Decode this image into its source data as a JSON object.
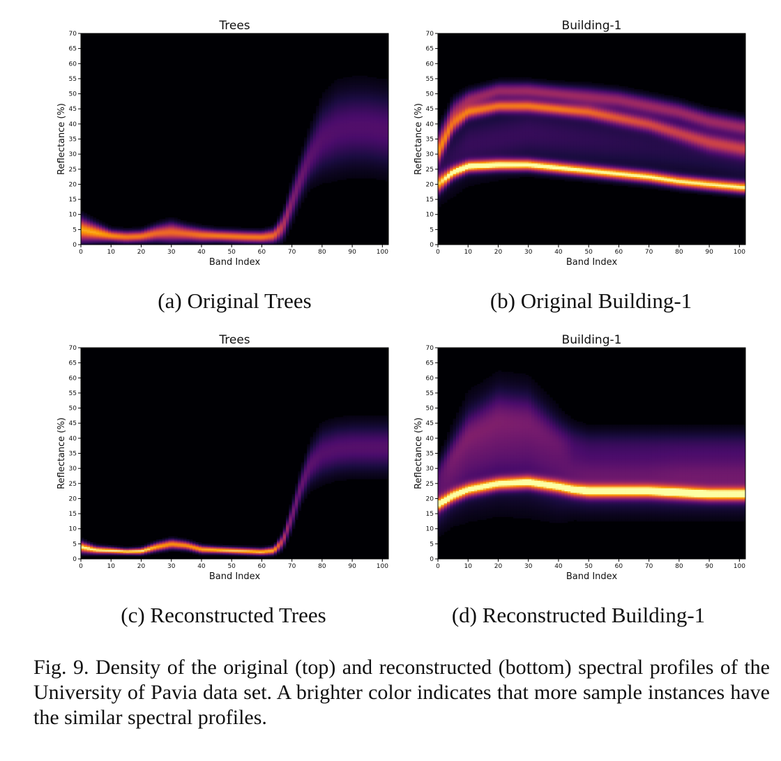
{
  "chart_data": [
    {
      "type": "heatmap",
      "title": "Trees",
      "xlabel": "Band Index",
      "ylabel": "Reflectance (%)",
      "xlim": [
        0,
        102
      ],
      "ylim": [
        0,
        70
      ],
      "xticks": [
        0,
        10,
        20,
        30,
        40,
        50,
        60,
        70,
        80,
        90,
        100
      ],
      "yticks": [
        0,
        5,
        10,
        15,
        20,
        25,
        30,
        35,
        40,
        45,
        50,
        55,
        60,
        65,
        70
      ],
      "colormap": "inferno",
      "caption": "(a) Original Trees",
      "bands": [
        {
          "name": "",
          "x": [
            0,
            5,
            10,
            15,
            20,
            25,
            30,
            35,
            40,
            45,
            50,
            55,
            60,
            64,
            67,
            70,
            73,
            76,
            80,
            85,
            90,
            95,
            101
          ],
          "center": [
            5,
            4,
            3,
            2.6,
            2.8,
            3.8,
            4.2,
            3.7,
            3.2,
            3,
            2.8,
            2.6,
            2.5,
            3,
            6,
            14,
            22,
            29,
            35,
            38,
            39,
            39,
            38
          ],
          "spread": [
            2.5,
            1.8,
            1.2,
            1.2,
            1.2,
            1.6,
            2,
            1.6,
            1.4,
            1.2,
            1.2,
            1.2,
            1.2,
            1.4,
            2.5,
            3.5,
            4,
            5,
            7,
            8,
            8,
            8,
            8
          ],
          "peak": [
            0.9,
            0.9,
            0.85,
            0.8,
            0.8,
            0.75,
            0.75,
            0.75,
            0.78,
            0.8,
            0.8,
            0.8,
            0.8,
            0.75,
            0.55,
            0.4,
            0.35,
            0.3,
            0.28,
            0.27,
            0.27,
            0.27,
            0.27
          ]
        }
      ]
    },
    {
      "type": "heatmap",
      "title": "Building-1",
      "xlabel": "Band Index",
      "ylabel": "Reflectance (%)",
      "xlim": [
        0,
        102
      ],
      "ylim": [
        0,
        70
      ],
      "xticks": [
        0,
        10,
        20,
        30,
        40,
        50,
        60,
        70,
        80,
        90,
        100
      ],
      "yticks": [
        0,
        5,
        10,
        15,
        20,
        25,
        30,
        35,
        40,
        45,
        50,
        55,
        60,
        65,
        70
      ],
      "colormap": "inferno",
      "caption": "(b) Original Building-1",
      "bands": [
        {
          "name": "",
          "x": [
            0,
            5,
            10,
            20,
            30,
            40,
            50,
            60,
            70,
            80,
            90,
            101
          ],
          "center": [
            20,
            24,
            26,
            26.5,
            26.5,
            25.5,
            24.5,
            23.5,
            22.5,
            21,
            20,
            19
          ],
          "spread": [
            2,
            1.4,
            1.3,
            1.3,
            1.3,
            1.3,
            1.3,
            1.3,
            1.3,
            1.3,
            1.3,
            1.3
          ],
          "peak": [
            0.8,
            0.95,
            1,
            1,
            1,
            0.98,
            0.95,
            0.95,
            0.95,
            0.95,
            0.95,
            0.95
          ]
        },
        {
          "name": "",
          "x": [
            0,
            5,
            10,
            20,
            30,
            40,
            50,
            60,
            70,
            80,
            90,
            101
          ],
          "center": [
            30,
            40,
            44,
            46,
            46,
            45,
            44,
            42,
            40,
            37,
            34,
            32
          ],
          "spread": [
            2.5,
            2,
            1.5,
            1.4,
            1.4,
            1.4,
            1.5,
            1.6,
            1.6,
            1.8,
            2,
            2
          ],
          "peak": [
            0.5,
            0.6,
            0.7,
            0.72,
            0.7,
            0.7,
            0.65,
            0.6,
            0.55,
            0.5,
            0.5,
            0.5
          ]
        },
        {
          "name": "",
          "x": [
            0,
            5,
            10,
            20,
            30,
            40,
            50,
            60,
            70,
            80,
            90,
            101
          ],
          "center": [
            33,
            44,
            48,
            51,
            51,
            50,
            49,
            48,
            46,
            44,
            41,
            39
          ],
          "spread": [
            3,
            2.5,
            2,
            1.8,
            1.8,
            1.8,
            2,
            2,
            2,
            2,
            2,
            2
          ],
          "peak": [
            0.35,
            0.4,
            0.45,
            0.45,
            0.45,
            0.45,
            0.45,
            0.45,
            0.45,
            0.45,
            0.45,
            0.45
          ]
        },
        {
          "name": "",
          "x": [
            0,
            10,
            30,
            50,
            70,
            90,
            101
          ],
          "center": [
            25,
            33,
            37,
            35,
            33,
            30,
            28
          ],
          "spread": [
            7,
            7,
            7,
            7,
            7,
            6,
            6
          ],
          "peak": [
            0.15,
            0.2,
            0.2,
            0.18,
            0.16,
            0.15,
            0.15
          ]
        }
      ]
    },
    {
      "type": "heatmap",
      "title": "Trees",
      "xlabel": "Band Index",
      "ylabel": "Reflectance (%)",
      "xlim": [
        0,
        102
      ],
      "ylim": [
        0,
        70
      ],
      "xticks": [
        0,
        10,
        20,
        30,
        40,
        50,
        60,
        70,
        80,
        90,
        100
      ],
      "yticks": [
        0,
        5,
        10,
        15,
        20,
        25,
        30,
        35,
        40,
        45,
        50,
        55,
        60,
        65,
        70
      ],
      "colormap": "inferno",
      "caption": "(c) Reconstructed Trees",
      "bands": [
        {
          "name": "",
          "x": [
            0,
            5,
            10,
            15,
            20,
            25,
            30,
            35,
            40,
            45,
            50,
            55,
            60,
            64,
            67,
            70,
            73,
            76,
            80,
            85,
            90,
            95,
            101
          ],
          "center": [
            4,
            3,
            2.8,
            2.5,
            2.6,
            4,
            5,
            4.5,
            3.2,
            3,
            2.8,
            2.6,
            2.4,
            2.8,
            6,
            14,
            24,
            31,
            35,
            36.5,
            37,
            37,
            37
          ],
          "spread": [
            1.2,
            0.8,
            0.7,
            0.6,
            0.7,
            0.9,
            1,
            0.9,
            0.8,
            0.7,
            0.7,
            0.7,
            0.7,
            0.8,
            1.5,
            2.5,
            3,
            4,
            5,
            5,
            5,
            5,
            5
          ],
          "peak": [
            1,
            1,
            1,
            1,
            1,
            0.9,
            0.85,
            0.85,
            0.9,
            0.95,
            0.95,
            0.95,
            0.95,
            0.9,
            0.55,
            0.38,
            0.33,
            0.3,
            0.28,
            0.28,
            0.28,
            0.28,
            0.28
          ]
        }
      ]
    },
    {
      "type": "heatmap",
      "title": "Building-1",
      "xlabel": "Band Index",
      "ylabel": "Reflectance (%)",
      "xlim": [
        0,
        102
      ],
      "ylim": [
        0,
        70
      ],
      "xticks": [
        0,
        10,
        20,
        30,
        40,
        50,
        60,
        70,
        80,
        90,
        100
      ],
      "yticks": [
        0,
        5,
        10,
        15,
        20,
        25,
        30,
        35,
        40,
        45,
        50,
        55,
        60,
        65,
        70
      ],
      "colormap": "inferno",
      "caption": "(d) Reconstructed Building-1",
      "bands": [
        {
          "name": "",
          "x": [
            0,
            5,
            10,
            20,
            30,
            40,
            45,
            50,
            60,
            70,
            80,
            90,
            101
          ],
          "center": [
            18,
            21,
            23,
            25,
            25.5,
            24,
            23,
            22.5,
            22.5,
            22.5,
            22,
            21.5,
            21.5
          ],
          "spread": [
            1.5,
            1.5,
            1.5,
            1.5,
            1.5,
            1.5,
            1.5,
            1.5,
            1.5,
            1.5,
            1.5,
            1.5,
            1.5
          ],
          "peak": [
            0.85,
            0.9,
            0.9,
            0.92,
            0.95,
            0.9,
            0.9,
            0.92,
            0.92,
            0.92,
            0.95,
            0.95,
            0.95
          ]
        },
        {
          "name": "",
          "x": [
            0,
            5,
            10,
            20,
            30,
            35,
            40,
            45,
            50,
            60,
            70,
            80,
            90,
            101
          ],
          "center": [
            20,
            28,
            34,
            38,
            37,
            34,
            31,
            28,
            27,
            27,
            27,
            27,
            27,
            27
          ],
          "spread": [
            6,
            8,
            10,
            11,
            11,
            10,
            9,
            7,
            6.5,
            6.5,
            6.5,
            6.5,
            6.5,
            6.5
          ],
          "peak": [
            0.3,
            0.32,
            0.32,
            0.32,
            0.3,
            0.3,
            0.3,
            0.32,
            0.34,
            0.34,
            0.34,
            0.36,
            0.36,
            0.36
          ]
        },
        {
          "name": "",
          "x": [
            0,
            10,
            20,
            30,
            40,
            50,
            60,
            70,
            80,
            90,
            101
          ],
          "center": [
            28,
            42,
            48,
            47,
            40,
            38,
            38,
            38,
            38,
            38,
            38
          ],
          "spread": [
            3,
            4,
            5,
            5,
            4,
            3.5,
            3.5,
            3.5,
            3.5,
            3.5,
            3.5
          ],
          "peak": [
            0.12,
            0.15,
            0.16,
            0.16,
            0.13,
            0.12,
            0.12,
            0.12,
            0.12,
            0.12,
            0.12
          ]
        }
      ]
    }
  ],
  "figure_caption": "Fig. 9.  Density of the original (top) and reconstructed (bottom) spectral profiles of the University of Pavia data set. A brighter color indicates that more sample instances have the similar spectral profiles."
}
